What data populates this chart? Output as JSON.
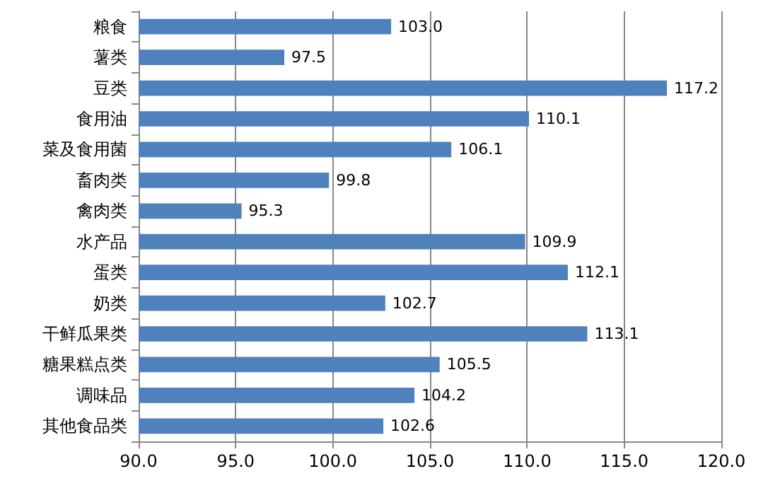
{
  "chart_data": {
    "type": "bar",
    "orientation": "horizontal",
    "categories": [
      "粮食",
      "薯类",
      "豆类",
      "食用油",
      "菜及食用菌",
      "畜肉类",
      "禽肉类",
      "水产品",
      "蛋类",
      "奶类",
      "干鲜瓜果类",
      "糖果糕点类",
      "调味品",
      "其他食品类"
    ],
    "values": [
      103.0,
      97.5,
      117.2,
      110.1,
      106.1,
      99.8,
      95.3,
      109.9,
      112.1,
      102.7,
      113.1,
      105.5,
      104.2,
      102.6
    ],
    "value_labels": [
      "103.0",
      "97.5",
      "117.2",
      "110.1",
      "106.1",
      "99.8",
      "95.3",
      "109.9",
      "112.1",
      "102.7",
      "113.1",
      "105.5",
      "104.2",
      "102.6"
    ],
    "color": "#4f81bd",
    "xlim": [
      90,
      120
    ],
    "xticks": [
      {
        "value": 90,
        "label": "90.0"
      },
      {
        "value": 95,
        "label": "95.0"
      },
      {
        "value": 100,
        "label": "100.0"
      },
      {
        "value": 105,
        "label": "105.0"
      },
      {
        "value": 110,
        "label": "110.0"
      },
      {
        "value": 115,
        "label": "115.0"
      },
      {
        "value": 120,
        "label": "120.0"
      }
    ],
    "grid": "x"
  }
}
